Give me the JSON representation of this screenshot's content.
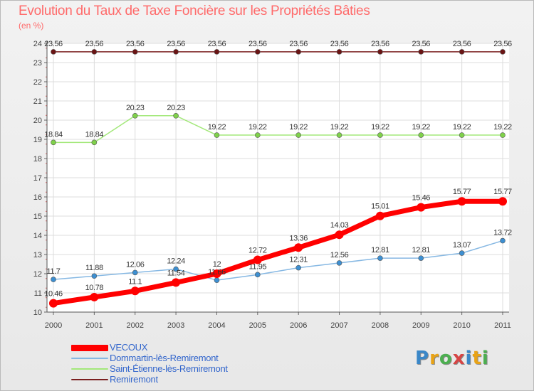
{
  "title": "Evolution du Taux de Taxe Foncière sur les Propriétés Bâties",
  "unit": "(en %)",
  "logo": {
    "letters": [
      "P",
      "r",
      "o",
      "x",
      "i",
      "t",
      "i"
    ],
    "colors": [
      "#3a87c8",
      "#e8a317",
      "#4caf50",
      "#d64545",
      "#3a87c8",
      "#e8a317",
      "#4caf50"
    ]
  },
  "chart_data": {
    "type": "line",
    "x": [
      "2000",
      "2001",
      "2002",
      "2003",
      "2004",
      "2005",
      "2006",
      "2007",
      "2008",
      "2009",
      "2010",
      "2011"
    ],
    "ylim": [
      10,
      24
    ],
    "yticks": [
      "10",
      "11",
      "12",
      "13",
      "14",
      "15",
      "16",
      "17",
      "18",
      "19",
      "20",
      "21",
      "22",
      "23",
      "24"
    ],
    "grid": true,
    "legend_position": "bottom-left",
    "series": [
      {
        "name": "Remiremont",
        "color": "#7a1f1f",
        "dot": "#6a1414",
        "width": 1.5,
        "r": 3.5,
        "values": [
          23.56,
          23.56,
          23.56,
          23.56,
          23.56,
          23.56,
          23.56,
          23.56,
          23.56,
          23.56,
          23.56,
          23.56
        ],
        "labels": [
          "23.56",
          "23.56",
          "23.56",
          "23.56",
          "23.56",
          "23.56",
          "23.56",
          "23.56",
          "23.56",
          "23.56",
          "23.56",
          "23.56"
        ]
      },
      {
        "name": "Saint-Étienne-lès-Remiremont",
        "color": "#a3e87a",
        "dot": "#7fd14a",
        "width": 1.5,
        "r": 3.5,
        "values": [
          18.84,
          18.84,
          20.23,
          20.23,
          19.22,
          19.22,
          19.22,
          19.22,
          19.22,
          19.22,
          19.22,
          19.22
        ],
        "labels": [
          "18.84",
          "18.84",
          "20.23",
          "20.23",
          "19.22",
          "19.22",
          "19.22",
          "19.22",
          "19.22",
          "19.22",
          "19.22",
          "19.22"
        ]
      },
      {
        "name": "Dommartin-lès-Remiremont",
        "color": "#86b8e3",
        "dot": "#3d8fd1",
        "width": 1.5,
        "r": 3.5,
        "values": [
          11.7,
          11.88,
          12.06,
          12.24,
          11.66,
          11.95,
          12.31,
          12.56,
          12.81,
          12.81,
          13.07,
          13.72
        ],
        "labels": [
          "11.7",
          "11.88",
          "12.06",
          "12.24",
          "11.66",
          "11.95",
          "12.31",
          "12.56",
          "12.81",
          "12.81",
          "13.07",
          "13.72"
        ]
      },
      {
        "name": "VECOUX",
        "color": "#ff0000",
        "dot": "#ff0000",
        "width": 7,
        "r": 6,
        "values": [
          10.46,
          10.78,
          11.1,
          11.54,
          12,
          12.72,
          13.36,
          14.03,
          15.01,
          15.46,
          15.77,
          15.77
        ],
        "labels": [
          "10.46",
          "10.78",
          "11.1",
          "11.54",
          "12",
          "12.72",
          "13.36",
          "14.03",
          "15.01",
          "15.46",
          "15.77",
          "15.77"
        ]
      }
    ]
  }
}
